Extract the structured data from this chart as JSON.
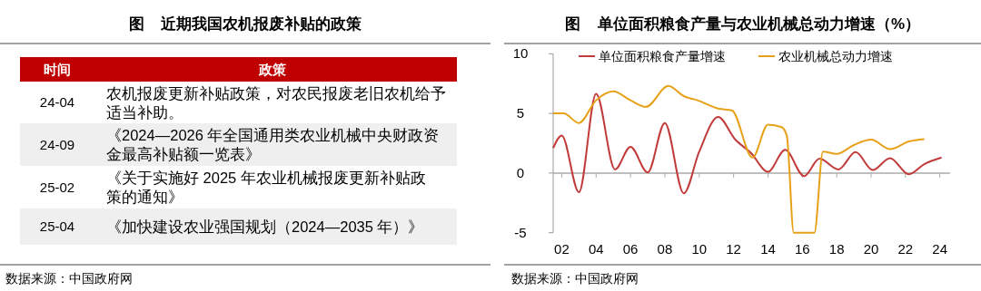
{
  "chart_data": [
    {
      "type": "other",
      "title": "图    近期我国农机报废补贴的政策",
      "categories": [
        "时间",
        "政策"
      ],
      "y_categories": [
        "24-04",
        "24-09",
        "25-02",
        "25-04"
      ],
      "cell_labels": [
        [
          "农机报废更新补贴政策，对农民报废老旧农机给予适当补助。"
        ],
        [
          "《2024—2026 年全国通用类农业机械中央财政资金最高补贴额一览表》"
        ],
        [
          "《关于实施好 2025 年农业机械报废更新补贴政策的通知》"
        ],
        [
          "《加快建设农业强国规划（2024—2035 年）》"
        ]
      ],
      "annotations": [
        "数据来源：中国政府网"
      ]
    },
    {
      "type": "line",
      "title": "图    单位面积粮食产量与农业机械总动力增速（%）",
      "xlim": [
        2001.5,
        2024.6
      ],
      "ylim": [
        -5,
        10
      ],
      "yticks": [
        -5,
        0,
        5,
        10
      ],
      "xticks": [
        {
          "value": 2002,
          "label": "02"
        },
        {
          "value": 2004,
          "label": "04"
        },
        {
          "value": 2006,
          "label": "06"
        },
        {
          "value": 2008,
          "label": "08"
        },
        {
          "value": 2010,
          "label": "10"
        },
        {
          "value": 2012,
          "label": "12"
        },
        {
          "value": 2014,
          "label": "14"
        },
        {
          "value": 2016,
          "label": "16"
        },
        {
          "value": 2018,
          "label": "18"
        },
        {
          "value": 2020,
          "label": "20"
        },
        {
          "value": 2022,
          "label": "22"
        },
        {
          "value": 2024,
          "label": "24"
        }
      ],
      "legend": "top",
      "ref_lines": [
        {
          "axis": "y",
          "value": 0,
          "color": "#aaaaaa"
        }
      ],
      "series": [
        {
          "name": "单位面积粮食产量增速",
          "color": "#c23b3b",
          "x": [
            2001.5,
            2002,
            2003,
            2004,
            2005.1,
            2006,
            2007,
            2008,
            2009.1,
            2010,
            2011.1,
            2012.1,
            2013,
            2014,
            2015,
            2016.1,
            2017,
            2018.1,
            2019.1,
            2020.1,
            2021.1,
            2022.2,
            2023.1,
            2024.1
          ],
          "values": [
            2.1,
            3.15,
            -1.6,
            6.65,
            0.3,
            2.2,
            0.05,
            4.2,
            -1.7,
            1.8,
            4.7,
            2.8,
            1.7,
            0.1,
            1.95,
            -0.25,
            1.2,
            0.3,
            1.75,
            0.25,
            1.25,
            -0.1,
            0.75,
            1.3
          ]
        },
        {
          "name": "农业机械总动力增速",
          "color": "#e6a118",
          "x": [
            2001.5,
            2002.1,
            2003,
            2004,
            2005,
            2006,
            2006.9,
            2008.2,
            2009.1,
            2009.9,
            2011.1,
            2011.9,
            2013.1,
            2014,
            2014.8,
            2015.1,
            2015.5,
            2016.7,
            2017.2,
            2018,
            2019,
            2020,
            2021.1,
            2022.2,
            2023.1
          ],
          "values": [
            5,
            5,
            4.2,
            6.1,
            6.85,
            6.1,
            5.55,
            7.3,
            6.45,
            6.1,
            5.4,
            5.25,
            1.3,
            4.05,
            3.85,
            3.1,
            -5,
            -5,
            1.8,
            1.6,
            2.35,
            2.8,
            2,
            2.65,
            2.85
          ]
        }
      ],
      "annotations": [
        "数据来源：中国政府网"
      ]
    }
  ]
}
